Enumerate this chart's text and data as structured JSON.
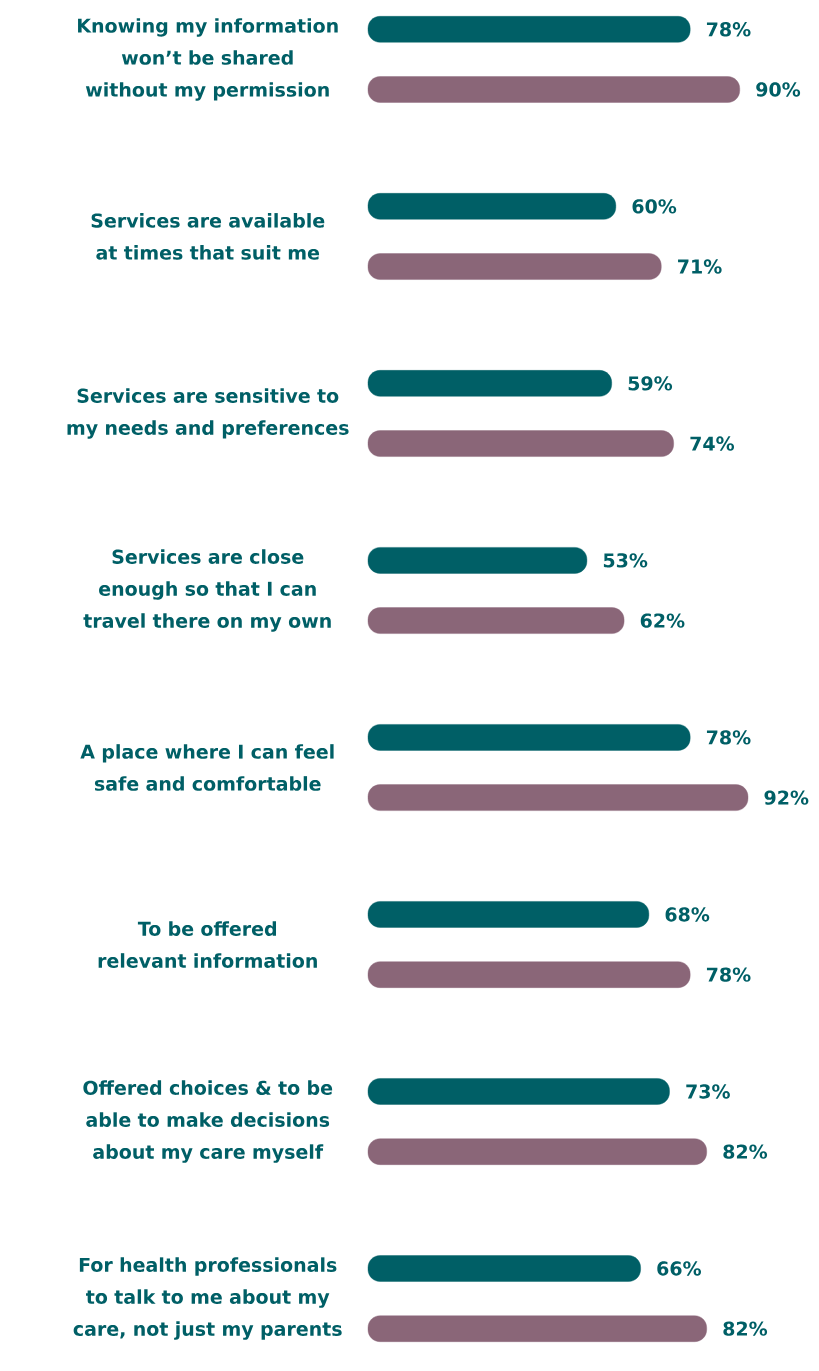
{
  "chart_data": {
    "type": "bar",
    "orientation": "horizontal",
    "tick_labels": "y",
    "categories": [
      "Knowing my information won’t be shared without my permission",
      "Services are available at times that suit me",
      "Services are sensitive to my needs and preferences",
      "Services are close enough so that I can travel there on my own",
      "A place where I can feel safe and comfortable",
      "To be offered relevant information",
      "Offered choices & to be able to make decisions about my care myself",
      "For health professionals to talk to me about my care, not just my parents"
    ],
    "series": [
      {
        "color": "#005f66",
        "values": [
          78,
          60,
          59,
          53,
          78,
          68,
          73,
          66
        ],
        "value_labels": [
          "78%",
          "60%",
          "59%",
          "53%",
          "78%",
          "68%",
          "73%",
          "66%"
        ]
      },
      {
        "color": "#8a6678",
        "values": [
          90,
          71,
          74,
          62,
          92,
          78,
          82,
          82
        ],
        "value_labels": [
          "90%",
          "71%",
          "74%",
          "62%",
          "92%",
          "78%",
          "82%",
          "82%"
        ]
      }
    ]
  }
}
